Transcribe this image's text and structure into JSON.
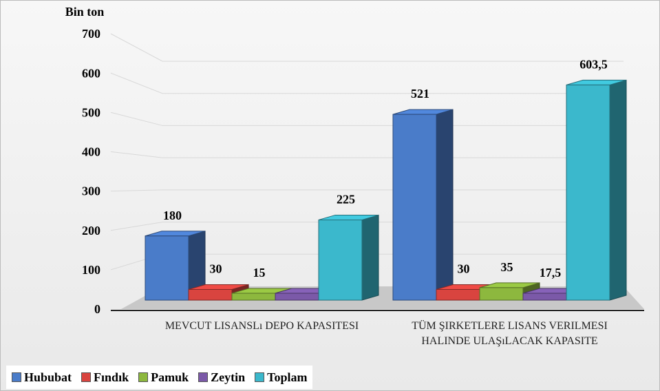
{
  "chart_data": {
    "type": "bar3d",
    "y_axis_label": "Bin ton",
    "categories": [
      "MEVCUT LISANSLı DEPO KAPASITESI",
      "TÜM ŞIRKETLERE LISANS VERILMESI HALINDE ULAŞıLACAK KAPASITE"
    ],
    "series": [
      {
        "name": "Hububat",
        "color": "#4a7cc9",
        "values": [
          180,
          521
        ]
      },
      {
        "name": "Fındık",
        "color": "#d9443f",
        "values": [
          30,
          30
        ]
      },
      {
        "name": "Pamuk",
        "color": "#8db83e",
        "values": [
          15,
          35
        ]
      },
      {
        "name": "Zeytin",
        "color": "#7b59a8",
        "values": [
          0,
          17.5
        ],
        "value_labels": [
          null,
          "17,5"
        ]
      },
      {
        "name": "Toplam",
        "color": "#3bb8cc",
        "values": [
          225,
          603.5
        ],
        "value_labels": [
          "225",
          "603,5"
        ]
      }
    ],
    "ylim": [
      0,
      700
    ],
    "yticks": [
      0,
      100,
      200,
      300,
      400,
      500,
      600,
      700
    ],
    "grid": true,
    "legend": "bottom-left"
  }
}
